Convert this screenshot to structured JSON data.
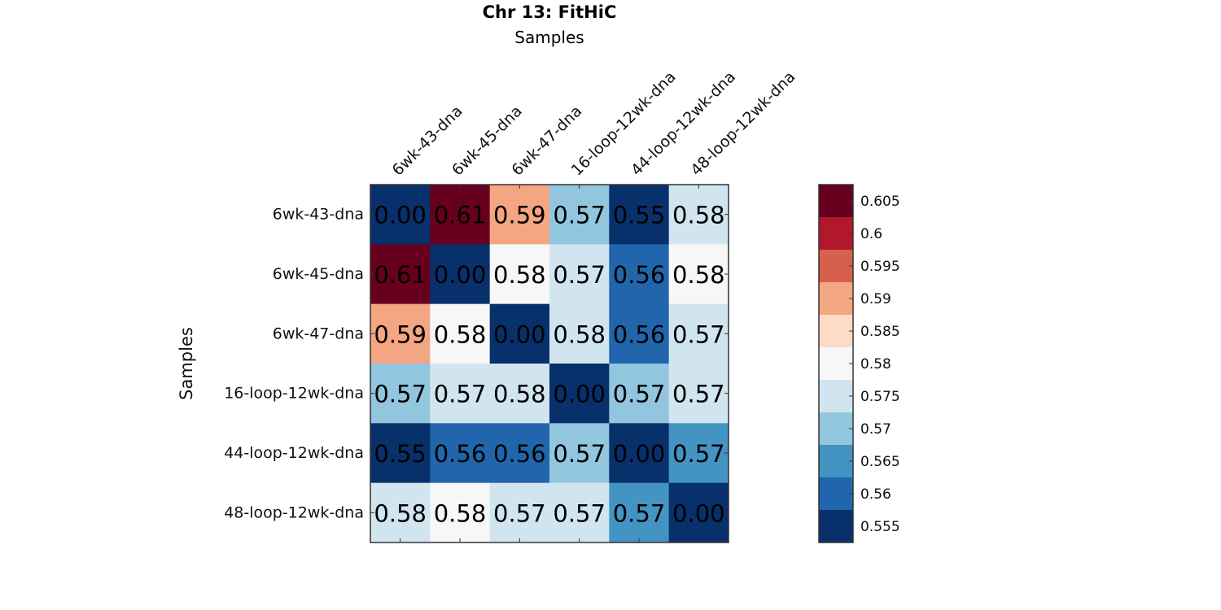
{
  "chart_data": {
    "type": "heatmap",
    "title": "Chr 13: FitHiC",
    "xlabel": "Samples",
    "ylabel": "Samples",
    "x_categories": [
      "6wk-43-dna",
      "6wk-45-dna",
      "6wk-47-dna",
      "16-loop-12wk-dna",
      "44-loop-12wk-dna",
      "48-loop-12wk-dna"
    ],
    "y_categories": [
      "6wk-43-dna",
      "6wk-45-dna",
      "6wk-47-dna",
      "16-loop-12wk-dna",
      "44-loop-12wk-dna",
      "48-loop-12wk-dna"
    ],
    "values": [
      [
        0.0,
        0.61,
        0.59,
        0.57,
        0.55,
        0.58
      ],
      [
        0.61,
        0.0,
        0.58,
        0.57,
        0.56,
        0.58
      ],
      [
        0.59,
        0.58,
        0.0,
        0.58,
        0.56,
        0.57
      ],
      [
        0.57,
        0.57,
        0.58,
        0.0,
        0.57,
        0.57
      ],
      [
        0.55,
        0.56,
        0.56,
        0.57,
        0.0,
        0.57
      ],
      [
        0.58,
        0.58,
        0.57,
        0.57,
        0.57,
        0.0
      ]
    ],
    "cell_labels": [
      [
        "0.00",
        "0.61",
        "0.59",
        "0.57",
        "0.55",
        "0.58"
      ],
      [
        "0.61",
        "0.00",
        "0.58",
        "0.57",
        "0.56",
        "0.58"
      ],
      [
        "0.59",
        "0.58",
        "0.00",
        "0.58",
        "0.56",
        "0.57"
      ],
      [
        "0.57",
        "0.57",
        "0.58",
        "0.00",
        "0.57",
        "0.57"
      ],
      [
        "0.55",
        "0.56",
        "0.56",
        "0.57",
        "0.00",
        "0.57"
      ],
      [
        "0.58",
        "0.58",
        "0.57",
        "0.57",
        "0.57",
        "0.00"
      ]
    ],
    "cell_colors": [
      [
        "#08306b",
        "#67001f",
        "#f4a582",
        "#92c5de",
        "#08306b",
        "#d1e5f0"
      ],
      [
        "#67001f",
        "#08306b",
        "#f7f7f7",
        "#d1e5f0",
        "#2166ac",
        "#f7f7f7"
      ],
      [
        "#f4a582",
        "#f7f7f7",
        "#08306b",
        "#d1e5f0",
        "#2166ac",
        "#d1e5f0"
      ],
      [
        "#92c5de",
        "#d1e5f0",
        "#d1e5f0",
        "#08306b",
        "#92c5de",
        "#d1e5f0"
      ],
      [
        "#08306b",
        "#2166ac",
        "#2166ac",
        "#92c5de",
        "#08306b",
        "#4393c3"
      ],
      [
        "#d1e5f0",
        "#f7f7f7",
        "#d1e5f0",
        "#d1e5f0",
        "#4393c3",
        "#08306b"
      ]
    ],
    "colorbar": {
      "colors_top_to_bottom": [
        "#67001f",
        "#b2182b",
        "#d6604d",
        "#f4a582",
        "#fddbc7",
        "#f7f7f7",
        "#d1e5f0",
        "#92c5de",
        "#4393c3",
        "#2166ac",
        "#08306b"
      ],
      "range": [
        0.5525,
        0.6075
      ],
      "ticks": [
        0.605,
        0.6,
        0.595,
        0.59,
        0.585,
        0.58,
        0.575,
        0.57,
        0.565,
        0.56,
        0.555
      ],
      "tick_labels": [
        "0.605",
        "0.6",
        "0.595",
        "0.59",
        "0.585",
        "0.58",
        "0.575",
        "0.57",
        "0.565",
        "0.56",
        "0.555"
      ]
    }
  }
}
